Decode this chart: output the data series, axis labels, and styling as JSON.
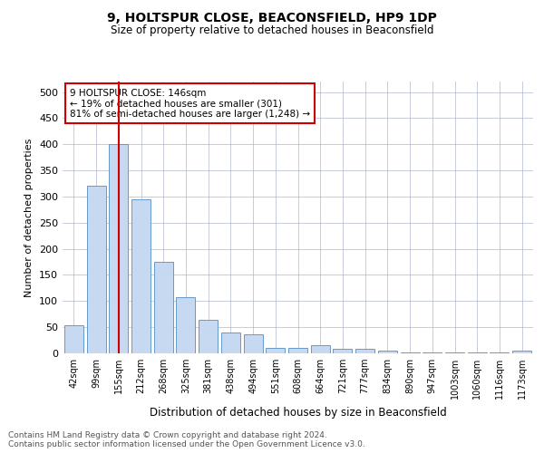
{
  "title1": "9, HOLTSPUR CLOSE, BEACONSFIELD, HP9 1DP",
  "title2": "Size of property relative to detached houses in Beaconsfield",
  "xlabel": "Distribution of detached houses by size in Beaconsfield",
  "ylabel": "Number of detached properties",
  "categories": [
    "42sqm",
    "99sqm",
    "155sqm",
    "212sqm",
    "268sqm",
    "325sqm",
    "381sqm",
    "438sqm",
    "494sqm",
    "551sqm",
    "608sqm",
    "664sqm",
    "721sqm",
    "777sqm",
    "834sqm",
    "890sqm",
    "947sqm",
    "1003sqm",
    "1060sqm",
    "1116sqm",
    "1173sqm"
  ],
  "values": [
    53,
    320,
    400,
    295,
    175,
    107,
    65,
    40,
    37,
    10,
    10,
    15,
    9,
    8,
    5,
    1,
    1,
    1,
    1,
    1,
    5
  ],
  "bar_color": "#c6d9f0",
  "bar_edge_color": "#6699cc",
  "highlight_bar_index": 2,
  "highlight_line_color": "#cc0000",
  "annotation_text": "9 HOLTSPUR CLOSE: 146sqm\n← 19% of detached houses are smaller (301)\n81% of semi-detached houses are larger (1,248) →",
  "annotation_box_color": "#cc0000",
  "ylim": [
    0,
    520
  ],
  "yticks": [
    0,
    50,
    100,
    150,
    200,
    250,
    300,
    350,
    400,
    450,
    500
  ],
  "footer_text": "Contains HM Land Registry data © Crown copyright and database right 2024.\nContains public sector information licensed under the Open Government Licence v3.0.",
  "background_color": "#ffffff",
  "grid_color": "#b0b8d0",
  "title1_fontsize": 10,
  "title2_fontsize": 8.5,
  "ylabel_fontsize": 8,
  "xlabel_fontsize": 8.5,
  "tick_fontsize": 7,
  "footer_fontsize": 6.5
}
